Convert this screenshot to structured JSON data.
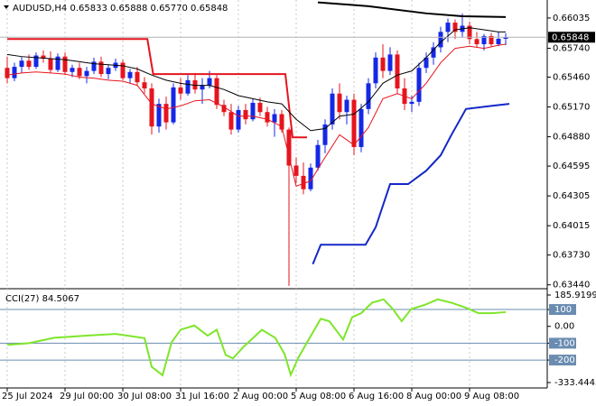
{
  "chart_data": [
    {
      "type": "candlestick",
      "title": "AUDUSD,H4  0.65833 0.65888 0.65770 0.65848",
      "categories": [
        "25 Jul 2024",
        null,
        null,
        null,
        null,
        null,
        null,
        null,
        "29 Jul 00:00",
        null,
        null,
        null,
        null,
        null,
        null,
        null,
        "30 Jul 08:00",
        null,
        null,
        null,
        null,
        null,
        null,
        null,
        "31 Jul 16:00",
        null,
        null,
        null,
        null,
        null,
        null,
        null,
        "2 Aug 00:00",
        null,
        null,
        null,
        null,
        null,
        null,
        null,
        "5 Aug 08:00",
        null,
        null,
        null,
        null,
        null,
        null,
        null,
        "6 Aug 16:00",
        null,
        null,
        null,
        null,
        null,
        null,
        null,
        "8 Aug 00:00",
        null,
        null,
        null,
        null,
        null,
        null,
        null,
        "9 Aug 08:00",
        null,
        null,
        null,
        null,
        null
      ],
      "open": [
        0.6555,
        0.6545,
        0.6556,
        0.6562,
        0.6556,
        0.6567,
        0.6564,
        0.6553,
        0.6566,
        0.6551,
        0.6555,
        0.6547,
        0.6552,
        0.6561,
        0.6549,
        0.6555,
        0.656,
        0.6545,
        0.6551,
        0.6541,
        0.6535,
        0.6498,
        0.652,
        0.6502,
        0.6536,
        0.653,
        0.6543,
        0.6534,
        0.6538,
        0.6545,
        0.6519,
        0.6512,
        0.6495,
        0.6514,
        0.6505,
        0.6521,
        0.6512,
        0.6502,
        0.651,
        0.6495,
        0.646,
        0.645,
        0.6437,
        0.6458,
        0.648,
        0.65,
        0.653,
        0.6512,
        0.6524,
        0.6478,
        0.6515,
        0.654,
        0.6565,
        0.6552,
        0.6568,
        0.6535,
        0.652,
        0.6522,
        0.6555,
        0.6565,
        0.6575,
        0.659,
        0.6599,
        0.659,
        0.6596,
        0.6583,
        0.6578,
        0.6586,
        0.6578,
        0.65833
      ],
      "high": [
        0.6566,
        0.656,
        0.6566,
        0.6568,
        0.657,
        0.6572,
        0.6571,
        0.6569,
        0.657,
        0.6558,
        0.656,
        0.6556,
        0.6565,
        0.6566,
        0.6558,
        0.6564,
        0.6563,
        0.6554,
        0.6556,
        0.6546,
        0.654,
        0.6525,
        0.6527,
        0.654,
        0.6545,
        0.6548,
        0.655,
        0.6545,
        0.6552,
        0.6548,
        0.6524,
        0.652,
        0.6518,
        0.652,
        0.6525,
        0.6526,
        0.6517,
        0.6515,
        0.6514,
        0.6497,
        0.6468,
        0.6463,
        0.6462,
        0.6485,
        0.6505,
        0.6535,
        0.654,
        0.6528,
        0.653,
        0.652,
        0.6545,
        0.657,
        0.6578,
        0.6575,
        0.6572,
        0.6545,
        0.6528,
        0.656,
        0.657,
        0.658,
        0.6595,
        0.6603,
        0.6602,
        0.6608,
        0.66,
        0.659,
        0.6588,
        0.6589,
        0.659,
        0.65888
      ],
      "low": [
        0.654,
        0.6542,
        0.655,
        0.6553,
        0.6554,
        0.656,
        0.655,
        0.6551,
        0.6548,
        0.6546,
        0.6544,
        0.654,
        0.6549,
        0.6546,
        0.6544,
        0.6552,
        0.6543,
        0.654,
        0.6538,
        0.653,
        0.649,
        0.6492,
        0.6495,
        0.65,
        0.6524,
        0.6528,
        0.653,
        0.652,
        0.6535,
        0.6515,
        0.6508,
        0.649,
        0.6492,
        0.65,
        0.6503,
        0.6508,
        0.6498,
        0.6488,
        0.6492,
        0.6343,
        0.6443,
        0.6432,
        0.6435,
        0.6455,
        0.6472,
        0.6495,
        0.6505,
        0.65,
        0.647,
        0.6473,
        0.651,
        0.6535,
        0.6545,
        0.6548,
        0.653,
        0.6514,
        0.6512,
        0.6518,
        0.655,
        0.6558,
        0.657,
        0.658,
        0.6583,
        0.6585,
        0.6578,
        0.6575,
        0.6572,
        0.6575,
        0.6576,
        0.6577
      ],
      "close": [
        0.6545,
        0.6556,
        0.6562,
        0.6556,
        0.6567,
        0.6564,
        0.6553,
        0.6566,
        0.6551,
        0.6555,
        0.6547,
        0.6552,
        0.6561,
        0.6549,
        0.6555,
        0.656,
        0.6545,
        0.6551,
        0.6541,
        0.6535,
        0.6498,
        0.652,
        0.6502,
        0.6536,
        0.653,
        0.6543,
        0.6534,
        0.6538,
        0.6545,
        0.6519,
        0.6512,
        0.6495,
        0.6514,
        0.6505,
        0.6521,
        0.6512,
        0.6502,
        0.651,
        0.6495,
        0.646,
        0.645,
        0.6437,
        0.6458,
        0.648,
        0.65,
        0.653,
        0.6512,
        0.6524,
        0.6478,
        0.6515,
        0.654,
        0.6565,
        0.6552,
        0.6568,
        0.6535,
        0.652,
        0.6522,
        0.6555,
        0.6565,
        0.6575,
        0.659,
        0.6599,
        0.659,
        0.6596,
        0.6583,
        0.6578,
        0.6586,
        0.6578,
        0.65833,
        0.65848
      ],
      "up_color": "#1428e6",
      "down_color": "#e6141e",
      "ylim": [
        0.6342,
        0.6621
      ],
      "yticks": [
        0.66035,
        {
          "value": 0.6574,
          "label": "0.65740"
        },
        {
          "value": 0.6546,
          "label": "0.65460"
        },
        {
          "value": 0.6517,
          "label": "0.65170"
        },
        {
          "value": 0.6488,
          "label": "0.64880"
        },
        0.64595,
        0.64305,
        0.64015,
        {
          "value": 0.6373,
          "label": "0.63730"
        },
        {
          "value": 0.6344,
          "label": "0.63440"
        }
      ],
      "grid": true,
      "current_price": 0.65848,
      "lines": [
        {
          "color": "#000000",
          "width": 2,
          "x": [
            43,
            50,
            58,
            63,
            69
          ],
          "values": [
            0.66187,
            0.6615,
            0.6608,
            0.66052,
            0.66044
          ]
        },
        {
          "color": "#e6141e",
          "width": 2,
          "x": [
            0,
            19.4,
            20.2,
            38.5,
            39.5,
            41.5
          ],
          "values": [
            0.6583,
            0.6583,
            0.6549,
            0.6549,
            0.64874,
            0.64874
          ]
        },
        {
          "color": "#1428c8",
          "width": 2,
          "x": [
            42.3,
            43.4,
            49.6,
            51,
            53,
            55.5,
            58,
            60,
            61.5,
            63.5,
            67,
            69.5
          ],
          "values": [
            0.63642,
            0.6383,
            0.6383,
            0.64,
            0.6442,
            0.6442,
            0.6455,
            0.647,
            0.649,
            0.6515,
            0.6518,
            0.652
          ]
        },
        {
          "color": "#000000",
          "width": 1,
          "x": [
            0,
            2,
            4,
            6,
            8,
            10,
            12,
            14,
            16,
            18,
            20,
            22,
            24,
            26,
            28,
            30,
            32,
            34,
            36,
            38,
            40,
            42,
            44,
            46,
            48,
            50,
            52,
            54,
            56,
            58,
            60,
            62,
            64,
            66,
            68,
            69
          ],
          "values": [
            0.6568,
            0.6566,
            0.6565,
            0.6564,
            0.6563,
            0.6561,
            0.6559,
            0.6558,
            0.6557,
            0.6554,
            0.6548,
            0.6543,
            0.654,
            0.6538,
            0.6538,
            0.6534,
            0.6528,
            0.6525,
            0.6522,
            0.652,
            0.6505,
            0.6494,
            0.6496,
            0.6508,
            0.651,
            0.6522,
            0.654,
            0.6548,
            0.6552,
            0.6565,
            0.658,
            0.6592,
            0.6594,
            0.6592,
            0.659,
            0.659
          ]
        },
        {
          "color": "#e6141e",
          "width": 1,
          "x": [
            0,
            2,
            4,
            6,
            8,
            10,
            12,
            14,
            16,
            18,
            20,
            22,
            24,
            26,
            28,
            30,
            32,
            34,
            36,
            38,
            40,
            42,
            44,
            46,
            48,
            50,
            52,
            54,
            56,
            58,
            60,
            62,
            64,
            66,
            68,
            69
          ],
          "values": [
            0.6548,
            0.655,
            0.6551,
            0.655,
            0.6549,
            0.6546,
            0.6545,
            0.6543,
            0.6542,
            0.6538,
            0.652,
            0.6515,
            0.6518,
            0.6523,
            0.6524,
            0.6517,
            0.6508,
            0.6508,
            0.6505,
            0.6498,
            0.644,
            0.6445,
            0.6468,
            0.649,
            0.648,
            0.6497,
            0.6525,
            0.653,
            0.6525,
            0.654,
            0.656,
            0.6574,
            0.6576,
            0.6574,
            0.6577,
            0.6578
          ]
        }
      ]
    },
    {
      "type": "line",
      "title": "CCI(27) 84.5067",
      "series": [
        {
          "color": "#7ee62a",
          "x": [
            0,
            3,
            6.5,
            11.5,
            15,
            19,
            20,
            21.5,
            22.75,
            24,
            25.9,
            27.75,
            29,
            30.25,
            31.25,
            32.75,
            35.25,
            37.1,
            38.4,
            39.25,
            40.25,
            41.5,
            43.4,
            44.6,
            46.5,
            47.75,
            49,
            50.5,
            52.1,
            53.4,
            54.6,
            55.9,
            57.75,
            59.6,
            61.5,
            63.4,
            65.25,
            67.1,
            69
          ],
          "values": [
            -110,
            -100,
            -68,
            -54,
            -45,
            -70,
            -240,
            -290,
            -95,
            -20,
            5,
            -55,
            -20,
            -170,
            -190,
            -120,
            -20,
            -68,
            -165,
            -288,
            -190,
            -95,
            45,
            30,
            -78,
            55,
            78,
            140,
            160,
            102,
            30,
            102,
            127,
            160,
            140,
            112,
            78,
            78,
            84.5067
          ]
        }
      ],
      "ylim": [
        -333.4445,
        185.9199
      ],
      "yticks": [
        185.9199,
        100,
        {
          "value": 0,
          "label": "0.00"
        },
        -100,
        -200,
        -333.4445
      ],
      "levels": [
        100,
        -100,
        -200
      ],
      "level_color": "#6a8cb0"
    }
  ]
}
